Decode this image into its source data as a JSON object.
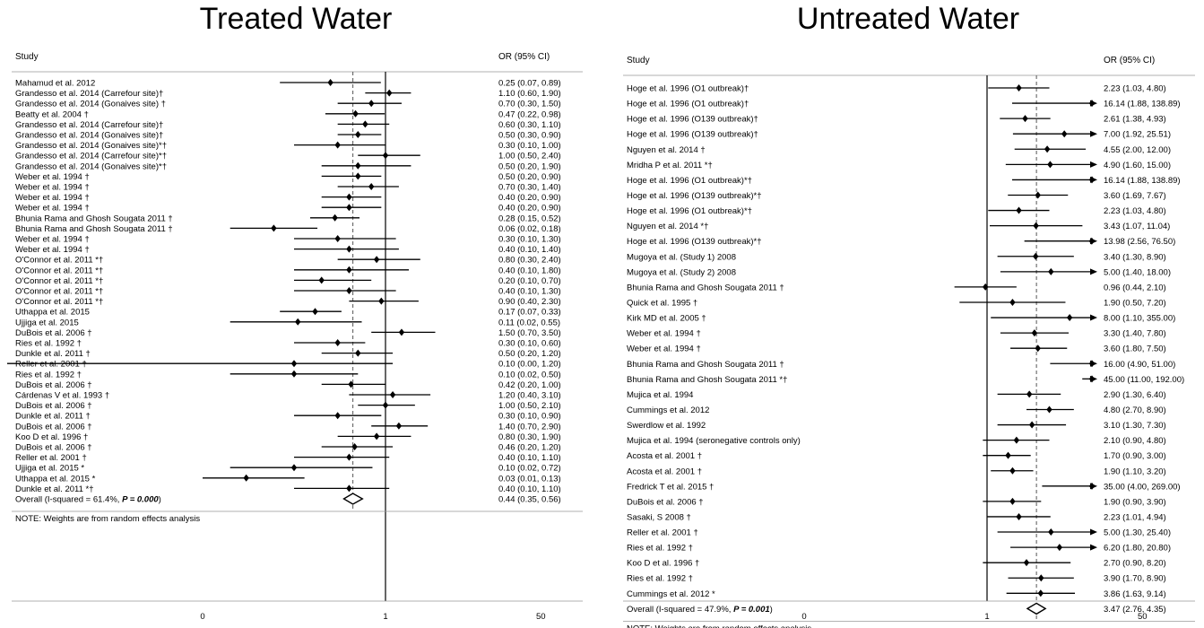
{
  "chart_data": [
    {
      "type": "forest",
      "title": "Treated Water",
      "column_headers": {
        "study": "Study",
        "estimate": "OR (95% CI)"
      },
      "x_scale": "log",
      "x_ticks": [
        {
          "value": 0.01,
          "label": "0"
        },
        {
          "value": 1,
          "label": "1"
        },
        {
          "value": 50,
          "label": "50"
        }
      ],
      "overall_line_value": 0.44,
      "studies": [
        {
          "label": "Mahamud et al. 2012",
          "or": 0.25,
          "lo": 0.07,
          "hi": 0.89,
          "text": "0.25 (0.07, 0.89)"
        },
        {
          "label": "Grandesso et al. 2014 (Carrefour site)†",
          "or": 1.1,
          "lo": 0.6,
          "hi": 1.9,
          "text": "1.10 (0.60, 1.90)"
        },
        {
          "label": "Grandesso et al. 2014 (Gonaives site) †",
          "or": 0.7,
          "lo": 0.3,
          "hi": 1.5,
          "text": "0.70 (0.30, 1.50)"
        },
        {
          "label": "Beatty et al. 2004 †",
          "or": 0.47,
          "lo": 0.22,
          "hi": 0.98,
          "text": "0.47 (0.22, 0.98)"
        },
        {
          "label": "Grandesso et al. 2014 (Carrefour site)†",
          "or": 0.6,
          "lo": 0.3,
          "hi": 1.1,
          "text": "0.60 (0.30, 1.10)"
        },
        {
          "label": "Grandesso et al. 2014 (Gonaives site)†",
          "or": 0.5,
          "lo": 0.3,
          "hi": 0.9,
          "text": "0.50 (0.30, 0.90)"
        },
        {
          "label": "Grandesso et al. 2014 (Gonaives site)*†",
          "or": 0.3,
          "lo": 0.1,
          "hi": 1.0,
          "text": "0.30 (0.10, 1.00)"
        },
        {
          "label": "Grandesso et al. 2014 (Carrefour site)*†",
          "or": 1.0,
          "lo": 0.5,
          "hi": 2.4,
          "text": "1.00 (0.50, 2.40)"
        },
        {
          "label": "Grandesso et al. 2014 (Gonaives site)*†",
          "or": 0.5,
          "lo": 0.2,
          "hi": 1.9,
          "text": "0.50 (0.20, 1.90)"
        },
        {
          "label": "Weber et al. 1994 †",
          "or": 0.5,
          "lo": 0.2,
          "hi": 0.9,
          "text": "0.50 (0.20, 0.90)"
        },
        {
          "label": "Weber et al. 1994 †",
          "or": 0.7,
          "lo": 0.3,
          "hi": 1.4,
          "text": "0.70 (0.30, 1.40)"
        },
        {
          "label": "Weber et al. 1994 †",
          "or": 0.4,
          "lo": 0.2,
          "hi": 0.9,
          "text": "0.40 (0.20, 0.90)"
        },
        {
          "label": "Weber et al. 1994 †",
          "or": 0.4,
          "lo": 0.2,
          "hi": 0.9,
          "text": "0.40 (0.20, 0.90)"
        },
        {
          "label": "Bhunia Rama and Ghosh Sougata 2011 †",
          "or": 0.28,
          "lo": 0.15,
          "hi": 0.52,
          "text": "0.28 (0.15, 0.52)"
        },
        {
          "label": "Bhunia Rama and Ghosh Sougata 2011 †",
          "or": 0.06,
          "lo": 0.02,
          "hi": 0.18,
          "text": "0.06 (0.02, 0.18)"
        },
        {
          "label": "Weber et al. 1994 †",
          "or": 0.3,
          "lo": 0.1,
          "hi": 1.3,
          "text": "0.30 (0.10, 1.30)"
        },
        {
          "label": "Weber et al. 1994 †",
          "or": 0.4,
          "lo": 0.1,
          "hi": 1.4,
          "text": "0.40 (0.10, 1.40)"
        },
        {
          "label": "O'Connor et al. 2011 *†",
          "or": 0.8,
          "lo": 0.3,
          "hi": 2.4,
          "text": "0.80 (0.30, 2.40)"
        },
        {
          "label": "O'Connor et al. 2011 *†",
          "or": 0.4,
          "lo": 0.1,
          "hi": 1.8,
          "text": "0.40 (0.10, 1.80)"
        },
        {
          "label": "O'Connor et al. 2011 *†",
          "or": 0.2,
          "lo": 0.1,
          "hi": 0.7,
          "text": "0.20 (0.10, 0.70)"
        },
        {
          "label": "O'Connor et al. 2011 *†",
          "or": 0.4,
          "lo": 0.1,
          "hi": 1.3,
          "text": "0.40 (0.10, 1.30)"
        },
        {
          "label": "O'Connor et al. 2011 *†",
          "or": 0.9,
          "lo": 0.4,
          "hi": 2.3,
          "text": "0.90 (0.40, 2.30)"
        },
        {
          "label": "Uthappa et al. 2015",
          "or": 0.17,
          "lo": 0.07,
          "hi": 0.33,
          "text": "0.17 (0.07, 0.33)"
        },
        {
          "label": "Ujjiga et al. 2015",
          "or": 0.11,
          "lo": 0.02,
          "hi": 0.55,
          "text": "0.11 (0.02, 0.55)"
        },
        {
          "label": "DuBois et al. 2006 †",
          "or": 1.5,
          "lo": 0.7,
          "hi": 3.5,
          "text": "1.50 (0.70, 3.50)"
        },
        {
          "label": "Ries et al. 1992 †",
          "or": 0.3,
          "lo": 0.1,
          "hi": 0.6,
          "text": "0.30 (0.10, 0.60)"
        },
        {
          "label": "Dunkle et al. 2011 †",
          "or": 0.5,
          "lo": 0.2,
          "hi": 1.2,
          "text": "0.50 (0.20, 1.20)"
        },
        {
          "label": "Reller et al. 2001 †",
          "or": 0.1,
          "lo": 0.0,
          "hi": 1.2,
          "text": "0.10 (0.00, 1.20)"
        },
        {
          "label": "Ries et al. 1992 †",
          "or": 0.1,
          "lo": 0.02,
          "hi": 0.5,
          "text": "0.10 (0.02, 0.50)"
        },
        {
          "label": "DuBois et al. 2006 †",
          "or": 0.42,
          "lo": 0.2,
          "hi": 1.0,
          "text": "0.42 (0.20, 1.00)"
        },
        {
          "label": "Cárdenas V et al. 1993 †",
          "or": 1.2,
          "lo": 0.4,
          "hi": 3.1,
          "text": "1.20 (0.40, 3.10)"
        },
        {
          "label": "DuBois et al. 2006 †",
          "or": 1.0,
          "lo": 0.5,
          "hi": 2.1,
          "text": "1.00 (0.50, 2.10)"
        },
        {
          "label": "Dunkle et al. 2011 †",
          "or": 0.3,
          "lo": 0.1,
          "hi": 0.9,
          "text": "0.30 (0.10, 0.90)"
        },
        {
          "label": "DuBois et al. 2006 †",
          "or": 1.4,
          "lo": 0.7,
          "hi": 2.9,
          "text": "1.40 (0.70, 2.90)"
        },
        {
          "label": "Koo D et al. 1996 †",
          "or": 0.8,
          "lo": 0.3,
          "hi": 1.9,
          "text": "0.80 (0.30, 1.90)"
        },
        {
          "label": "DuBois et al. 2006 †",
          "or": 0.46,
          "lo": 0.2,
          "hi": 1.2,
          "text": "0.46 (0.20, 1.20)"
        },
        {
          "label": "Reller et al. 2001 †",
          "or": 0.4,
          "lo": 0.1,
          "hi": 1.1,
          "text": "0.40 (0.10, 1.10)"
        },
        {
          "label": "Ujjiga et al. 2015 *",
          "or": 0.1,
          "lo": 0.02,
          "hi": 0.72,
          "text": "0.10 (0.02, 0.72)"
        },
        {
          "label": "Uthappa et al. 2015 *",
          "or": 0.03,
          "lo": 0.01,
          "hi": 0.13,
          "text": "0.03 (0.01, 0.13)"
        },
        {
          "label": "Dunkle et al. 2011 *†",
          "or": 0.4,
          "lo": 0.1,
          "hi": 1.1,
          "text": "0.40 (0.10, 1.10)"
        }
      ],
      "overall": {
        "label_prefix": "Overall  (I-squared = 61.4%, ",
        "label_p": "P = 0.000",
        "label_suffix": ")",
        "or": 0.44,
        "lo": 0.35,
        "hi": 0.56,
        "text": "0.44 (0.35, 0.56)"
      },
      "note": "NOTE: Weights are from random effects analysis"
    },
    {
      "type": "forest",
      "title": "Untreated Water",
      "column_headers": {
        "study": "Study",
        "estimate": "OR (95% CI)"
      },
      "x_scale": "log",
      "x_ticks": [
        {
          "value": 0.01,
          "label": "0"
        },
        {
          "value": 1,
          "label": "1"
        },
        {
          "value": 50,
          "label": "50"
        }
      ],
      "overall_line_value": 3.47,
      "studies": [
        {
          "label": "Hoge et al. 1996 (O1 outbreak)†",
          "or": 2.23,
          "lo": 1.03,
          "hi": 4.8,
          "text": "2.23 (1.03, 4.80)"
        },
        {
          "label": "Hoge et al. 1996 (O1 outbreak)†",
          "or": 16.14,
          "lo": 1.88,
          "hi": 138.89,
          "text": "16.14 (1.88, 138.89)"
        },
        {
          "label": "Hoge et al. 1996 (O139 outbreak)†",
          "or": 2.61,
          "lo": 1.38,
          "hi": 4.93,
          "text": "2.61 (1.38, 4.93)"
        },
        {
          "label": "Hoge et al. 1996 (O139 outbreak)†",
          "or": 7.0,
          "lo": 1.92,
          "hi": 25.51,
          "text": "7.00 (1.92, 25.51)"
        },
        {
          "label": "Nguyen et al. 2014 †",
          "or": 4.55,
          "lo": 2.0,
          "hi": 12.0,
          "text": "4.55 (2.00, 12.00)"
        },
        {
          "label": "Mridha P et al. 2011 *†",
          "or": 4.9,
          "lo": 1.6,
          "hi": 15.0,
          "text": "4.90 (1.60, 15.00)"
        },
        {
          "label": "Hoge et al. 1996 (O1 outbreak)*†",
          "or": 16.14,
          "lo": 1.88,
          "hi": 138.89,
          "text": "16.14 (1.88, 138.89)"
        },
        {
          "label": "Hoge et al. 1996 (O139 outbreak)*†",
          "or": 3.6,
          "lo": 1.69,
          "hi": 7.67,
          "text": "3.60 (1.69, 7.67)"
        },
        {
          "label": "Hoge et al. 1996 (O1 outbreak)*†",
          "or": 2.23,
          "lo": 1.03,
          "hi": 4.8,
          "text": "2.23 (1.03, 4.80)"
        },
        {
          "label": "Nguyen et al. 2014 *†",
          "or": 3.43,
          "lo": 1.07,
          "hi": 11.04,
          "text": "3.43 (1.07, 11.04)"
        },
        {
          "label": "Hoge et al. 1996 (O139 outbreak)*†",
          "or": 13.98,
          "lo": 2.56,
          "hi": 76.5,
          "text": "13.98 (2.56, 76.50)"
        },
        {
          "label": "Mugoya et al. (Study 1) 2008",
          "or": 3.4,
          "lo": 1.3,
          "hi": 8.9,
          "text": "3.40 (1.30, 8.90)"
        },
        {
          "label": "Mugoya et al. (Study 2) 2008",
          "or": 5.0,
          "lo": 1.4,
          "hi": 18.0,
          "text": "5.00 (1.40, 18.00)"
        },
        {
          "label": "Bhunia Rama and Ghosh Sougata 2011 †",
          "or": 0.96,
          "lo": 0.44,
          "hi": 2.1,
          "text": "0.96 (0.44, 2.10)"
        },
        {
          "label": "Quick et al. 1995 †",
          "or": 1.9,
          "lo": 0.5,
          "hi": 7.2,
          "text": "1.90 (0.50, 7.20)"
        },
        {
          "label": "Kirk MD et al. 2005 †",
          "or": 8.0,
          "lo": 1.1,
          "hi": 355.0,
          "text": "8.00 (1.10, 355.00)"
        },
        {
          "label": "Weber et al. 1994 †",
          "or": 3.3,
          "lo": 1.4,
          "hi": 7.8,
          "text": "3.30 (1.40, 7.80)"
        },
        {
          "label": "Weber et al. 1994 †",
          "or": 3.6,
          "lo": 1.8,
          "hi": 7.5,
          "text": "3.60 (1.80, 7.50)"
        },
        {
          "label": "Bhunia Rama and Ghosh Sougata 2011 †",
          "or": 16.0,
          "lo": 4.9,
          "hi": 51.0,
          "text": "16.00 (4.90, 51.00)"
        },
        {
          "label": "Bhunia Rama and Ghosh Sougata 2011 *†",
          "or": 45.0,
          "lo": 11.0,
          "hi": 192.0,
          "text": "45.00 (11.00, 192.00)"
        },
        {
          "label": "Mujica et al. 1994",
          "or": 2.9,
          "lo": 1.3,
          "hi": 6.4,
          "text": "2.90 (1.30, 6.40)"
        },
        {
          "label": "Cummings et al. 2012",
          "or": 4.8,
          "lo": 2.7,
          "hi": 8.9,
          "text": "4.80 (2.70, 8.90)"
        },
        {
          "label": "Swerdlow et al. 1992",
          "or": 3.1,
          "lo": 1.3,
          "hi": 7.3,
          "text": "3.10 (1.30, 7.30)"
        },
        {
          "label": "Mujica et al. 1994 (seronegative controls only)",
          "or": 2.1,
          "lo": 0.9,
          "hi": 4.8,
          "text": "2.10 (0.90, 4.80)"
        },
        {
          "label": "Acosta et al. 2001 †",
          "or": 1.7,
          "lo": 0.9,
          "hi": 3.0,
          "text": "1.70 (0.90, 3.00)"
        },
        {
          "label": "Acosta et al. 2001 †",
          "or": 1.9,
          "lo": 1.1,
          "hi": 3.2,
          "text": "1.90 (1.10, 3.20)"
        },
        {
          "label": "Fredrick T et al. 2015 †",
          "or": 35.0,
          "lo": 4.0,
          "hi": 269.0,
          "text": "35.00 (4.00, 269.00)"
        },
        {
          "label": "DuBois et al. 2006 †",
          "or": 1.9,
          "lo": 0.9,
          "hi": 3.9,
          "text": "1.90 (0.90, 3.90)"
        },
        {
          "label": "Sasaki, S 2008 †",
          "or": 2.23,
          "lo": 1.01,
          "hi": 4.94,
          "text": "2.23 (1.01, 4.94)"
        },
        {
          "label": "Reller et al. 2001 †",
          "or": 5.0,
          "lo": 1.3,
          "hi": 25.4,
          "text": "5.00 (1.30, 25.40)"
        },
        {
          "label": "Ries et al. 1992 †",
          "or": 6.2,
          "lo": 1.8,
          "hi": 20.8,
          "text": "6.20 (1.80, 20.80)"
        },
        {
          "label": "Koo D et al. 1996 †",
          "or": 2.7,
          "lo": 0.9,
          "hi": 8.2,
          "text": "2.70 (0.90, 8.20)"
        },
        {
          "label": "Ries et al. 1992 †",
          "or": 3.9,
          "lo": 1.7,
          "hi": 8.9,
          "text": "3.90 (1.70, 8.90)"
        },
        {
          "label": "Cummings et al. 2012 *",
          "or": 3.86,
          "lo": 1.63,
          "hi": 9.14,
          "text": "3.86 (1.63, 9.14)"
        }
      ],
      "overall": {
        "label_prefix": "Overall  (I-squared = 47.9%, ",
        "label_p": "P = 0.001",
        "label_suffix": ")",
        "or": 3.47,
        "lo": 2.76,
        "hi": 4.35,
        "text": "3.47 (2.76, 4.35)"
      },
      "note": "NOTE: Weights are from random effects analysis"
    }
  ]
}
